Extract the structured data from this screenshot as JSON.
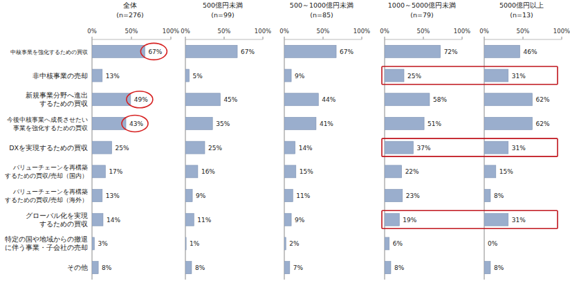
{
  "chart_data": [
    {
      "type": "bar",
      "orientation": "horizontal",
      "title": "全体",
      "subtitle": "(n=276)",
      "categories": [
        "中核事業を強化するための買収",
        "非中核事業の売却",
        "新規事業分野へ進出\nするための買収",
        "今後中核事業へ成長させたい\n事業を強化するための買収",
        "DXを実現するための買収",
        "バリューチェーンを再構築\nするための買収/売却（国内）",
        "バリューチェーンを再構築\nするための買収/売却（海外）",
        "グローバル化を実現\nするための買収",
        "特定の国や地域からの撤退\nに伴う事業・子会社の売却",
        "その他"
      ],
      "values": [
        67,
        13,
        49,
        43,
        25,
        17,
        13,
        14,
        3,
        8
      ],
      "value_labels": [
        "67%",
        "13%",
        "49%",
        "43%",
        "25%",
        "17%",
        "13%",
        "14%",
        "3%",
        "8%"
      ],
      "color": "#9aaecd",
      "xlim": [
        0,
        100
      ],
      "xticks": [
        {
          "value": 0,
          "label": "0%"
        },
        {
          "value": 50,
          "label": "50%"
        },
        {
          "value": 100,
          "label": "100%"
        }
      ],
      "grid": false,
      "data_labels": true
    },
    {
      "type": "bar",
      "orientation": "horizontal",
      "title": "500億円未満",
      "subtitle": "(n=99)",
      "categories": [
        null,
        null,
        null,
        null,
        null,
        null,
        null,
        null,
        null,
        null
      ],
      "values": [
        67,
        5,
        45,
        35,
        25,
        16,
        9,
        11,
        1,
        8
      ],
      "value_labels": [
        "67%",
        "5%",
        "45%",
        "35%",
        "25%",
        "16%",
        "9%",
        "11%",
        "1%",
        "8%"
      ],
      "color": "#9aaecd",
      "xlim": [
        0,
        100
      ],
      "xticks": [
        {
          "value": 0,
          "label": "0%"
        },
        {
          "value": 50,
          "label": "50%"
        },
        {
          "value": 100,
          "label": "100%"
        }
      ],
      "grid": false,
      "data_labels": true
    },
    {
      "type": "bar",
      "orientation": "horizontal",
      "title": "500～1000億円未満",
      "subtitle": "(n=85)",
      "categories": [
        null,
        null,
        null,
        null,
        null,
        null,
        null,
        null,
        null,
        null
      ],
      "values": [
        67,
        9,
        44,
        41,
        14,
        15,
        11,
        9,
        2,
        7
      ],
      "value_labels": [
        "67%",
        "9%",
        "44%",
        "41%",
        "14%",
        "15%",
        "11%",
        "9%",
        "2%",
        "7%"
      ],
      "color": "#9aaecd",
      "xlim": [
        0,
        100
      ],
      "xticks": [
        {
          "value": 0,
          "label": "0%"
        },
        {
          "value": 50,
          "label": "50%"
        },
        {
          "value": 100,
          "label": "100%"
        }
      ],
      "grid": false,
      "data_labels": true
    },
    {
      "type": "bar",
      "orientation": "horizontal",
      "title": "1000～5000億円未満",
      "subtitle": "(n=79)",
      "categories": [
        null,
        null,
        null,
        null,
        null,
        null,
        null,
        null,
        null,
        null
      ],
      "values": [
        72,
        25,
        58,
        51,
        37,
        22,
        23,
        19,
        6,
        8
      ],
      "value_labels": [
        "72%",
        "25%",
        "58%",
        "51%",
        "37%",
        "22%",
        "23%",
        "19%",
        "6%",
        "8%"
      ],
      "color": "#9aaecd",
      "xlim": [
        0,
        100
      ],
      "xticks": [
        {
          "value": 0,
          "label": "0%"
        },
        {
          "value": 50,
          "label": "50%"
        },
        {
          "value": 100,
          "label": "100%"
        }
      ],
      "grid": false,
      "data_labels": true
    },
    {
      "type": "bar",
      "orientation": "horizontal",
      "title": "5000億円以上",
      "subtitle": "(n=13)",
      "categories": [
        null,
        null,
        null,
        null,
        null,
        null,
        null,
        null,
        null,
        null
      ],
      "values": [
        46,
        31,
        62,
        62,
        31,
        15,
        8,
        31,
        0,
        8
      ],
      "value_labels": [
        "46%",
        "31%",
        "62%",
        "62%",
        "31%",
        "15%",
        "8%",
        "31%",
        "0%",
        "8%"
      ],
      "color": "#9aaecd",
      "xlim": [
        0,
        100
      ],
      "xticks": [
        {
          "value": 0,
          "label": "0%"
        },
        {
          "value": 50,
          "label": "50%"
        },
        {
          "value": 100,
          "label": "100%"
        }
      ],
      "grid": false,
      "data_labels": true
    }
  ]
}
